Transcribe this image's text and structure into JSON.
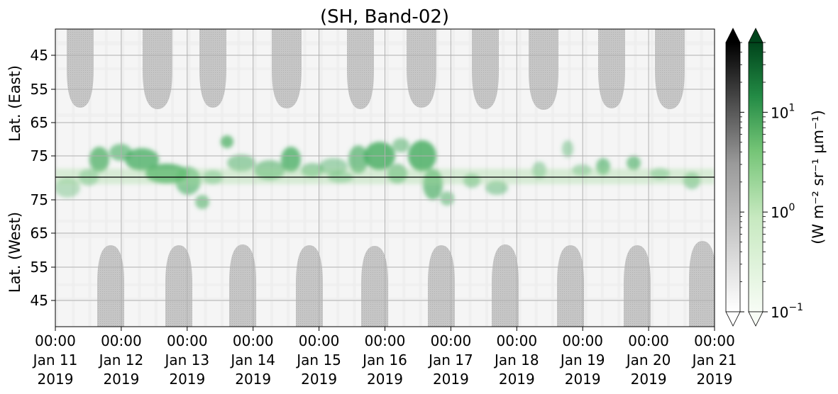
{
  "chart_data": {
    "type": "heatmap",
    "title": "(SH, Band-02)",
    "y_labels": {
      "east": "Lat. (East)",
      "west": "Lat. (West)"
    },
    "y_ticks_east": [
      45,
      55,
      65,
      75
    ],
    "y_ticks_west": [
      75,
      65,
      55,
      45
    ],
    "x_ticks": [
      {
        "time": "00:00",
        "day": "Jan 11",
        "year": "2019"
      },
      {
        "time": "00:00",
        "day": "Jan 12",
        "year": "2019"
      },
      {
        "time": "00:00",
        "day": "Jan 13",
        "year": "2019"
      },
      {
        "time": "00:00",
        "day": "Jan 14",
        "year": "2019"
      },
      {
        "time": "00:00",
        "day": "Jan 15",
        "year": "2019"
      },
      {
        "time": "00:00",
        "day": "Jan 16",
        "year": "2019"
      },
      {
        "time": "00:00",
        "day": "Jan 17",
        "year": "2019"
      },
      {
        "time": "00:00",
        "day": "Jan 18",
        "year": "2019"
      },
      {
        "time": "00:00",
        "day": "Jan 19",
        "year": "2019"
      },
      {
        "time": "00:00",
        "day": "Jan 20",
        "year": "2019"
      },
      {
        "time": "00:00",
        "day": "Jan 21",
        "year": "2019"
      }
    ],
    "colorbar": {
      "label": "(W m⁻² sr⁻¹ μm⁻¹)",
      "scale": "log",
      "range": [
        0.1,
        50
      ],
      "ticks": [
        {
          "value": 0.1,
          "base": "10",
          "exp": "−1"
        },
        {
          "value": 1,
          "base": "10",
          "exp": "0"
        },
        {
          "value": 10,
          "base": "10",
          "exp": "1"
        }
      ],
      "gray_colormap": [
        "#ffffff",
        "#000000"
      ],
      "green_colormap": [
        "#f7fcf5",
        "#00441b"
      ]
    },
    "grid": true,
    "colors": {
      "night_mask": "#c4c4c4",
      "background_gray": "#f0f0f0",
      "aurora_green": "#4fb467"
    }
  }
}
